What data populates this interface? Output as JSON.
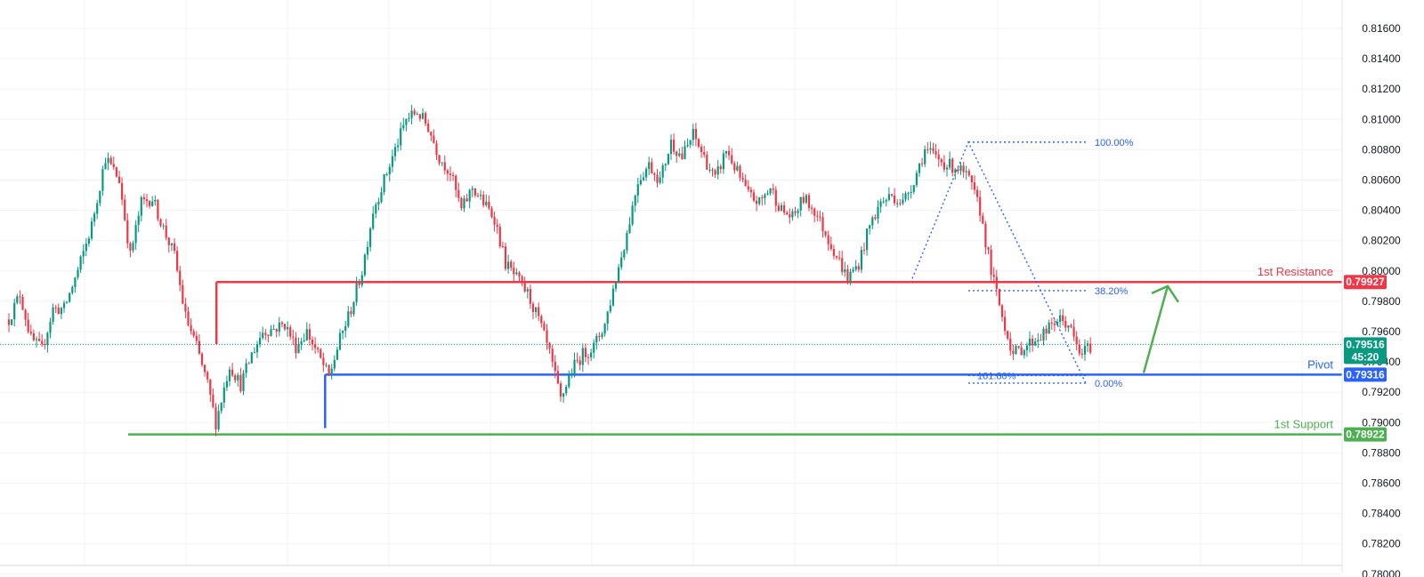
{
  "chart_data": {
    "type": "candlestick",
    "title": "",
    "ylim": [
      0.78,
      0.818
    ],
    "y_ticks": [
      "0.81600",
      "0.81400",
      "0.81200",
      "0.81000",
      "0.80800",
      "0.80600",
      "0.80400",
      "0.80200",
      "0.80000",
      "0.79800",
      "0.79600",
      "0.79400",
      "0.79200",
      "0.79000",
      "0.78800",
      "0.78600",
      "0.78400",
      "0.78200",
      "0.78000"
    ],
    "grid": true,
    "current_price": {
      "value": 0.79516,
      "label": "0.79516",
      "countdown": "45:20",
      "color": "#089981"
    },
    "levels": [
      {
        "name": "1st Resistance",
        "value": 0.79927,
        "label": "0.79927",
        "color": "#f23645"
      },
      {
        "name": "Pivot",
        "value": 0.79316,
        "label": "0.79316",
        "color": "#2962ff"
      },
      {
        "name": "1st Support",
        "value": 0.78922,
        "label": "0.78922",
        "color": "#4caf50"
      }
    ],
    "fib_retracement": [
      {
        "label": "100.00%",
        "value": 0.8085
      },
      {
        "label": "38.20%",
        "value": 0.7987
      },
      {
        "label": "161.80%",
        "value": 0.7931
      },
      {
        "label": "0.00%",
        "value": 0.7926
      }
    ],
    "arrow": {
      "direction": "up",
      "color": "#4caf50"
    },
    "colors": {
      "up": "#089981",
      "down": "#f23645",
      "grid": "#f0f3fa"
    },
    "waypoints": [
      [
        0,
        0.7968
      ],
      [
        4,
        0.7985
      ],
      [
        8,
        0.7955
      ],
      [
        12,
        0.7948
      ],
      [
        16,
        0.7975
      ],
      [
        20,
        0.7975
      ],
      [
        25,
        0.8
      ],
      [
        30,
        0.803
      ],
      [
        35,
        0.8075
      ],
      [
        40,
        0.806
      ],
      [
        44,
        0.801
      ],
      [
        48,
        0.8045
      ],
      [
        52,
        0.8048
      ],
      [
        56,
        0.8028
      ],
      [
        60,
        0.801
      ],
      [
        64,
        0.797
      ],
      [
        68,
        0.795
      ],
      [
        72,
        0.7925
      ],
      [
        75,
        0.79
      ],
      [
        80,
        0.7938
      ],
      [
        84,
        0.7925
      ],
      [
        88,
        0.7945
      ],
      [
        92,
        0.796
      ],
      [
        96,
        0.7962
      ],
      [
        100,
        0.7965
      ],
      [
        104,
        0.795
      ],
      [
        108,
        0.796
      ],
      [
        112,
        0.7945
      ],
      [
        116,
        0.793
      ],
      [
        120,
        0.7955
      ],
      [
        124,
        0.7975
      ],
      [
        128,
        0.8
      ],
      [
        132,
        0.804
      ],
      [
        136,
        0.806
      ],
      [
        140,
        0.808
      ],
      [
        144,
        0.81
      ],
      [
        148,
        0.8105
      ],
      [
        152,
        0.8095
      ],
      [
        156,
        0.8075
      ],
      [
        160,
        0.8065
      ],
      [
        164,
        0.804
      ],
      [
        168,
        0.8055
      ],
      [
        172,
        0.8045
      ],
      [
        176,
        0.8035
      ],
      [
        180,
        0.8005
      ],
      [
        184,
        0.7995
      ],
      [
        188,
        0.7985
      ],
      [
        192,
        0.7968
      ],
      [
        196,
        0.7945
      ],
      [
        200,
        0.7915
      ],
      [
        204,
        0.7935
      ],
      [
        208,
        0.7945
      ],
      [
        212,
        0.795
      ],
      [
        216,
        0.7965
      ],
      [
        220,
        0.7995
      ],
      [
        224,
        0.8025
      ],
      [
        228,
        0.806
      ],
      [
        232,
        0.807
      ],
      [
        236,
        0.806
      ],
      [
        240,
        0.8085
      ],
      [
        244,
        0.8075
      ],
      [
        248,
        0.809
      ],
      [
        252,
        0.8075
      ],
      [
        256,
        0.806
      ],
      [
        260,
        0.808
      ],
      [
        264,
        0.8065
      ],
      [
        268,
        0.805
      ],
      [
        272,
        0.8045
      ],
      [
        276,
        0.8055
      ],
      [
        280,
        0.804
      ],
      [
        284,
        0.8035
      ],
      [
        288,
        0.8048
      ],
      [
        292,
        0.804
      ],
      [
        296,
        0.8025
      ],
      [
        300,
        0.801
      ],
      [
        304,
        0.7995
      ],
      [
        308,
        0.8005
      ],
      [
        312,
        0.803
      ],
      [
        316,
        0.8045
      ],
      [
        320,
        0.805
      ],
      [
        324,
        0.8045
      ],
      [
        328,
        0.806
      ],
      [
        332,
        0.808
      ],
      [
        336,
        0.8075
      ],
      [
        340,
        0.807
      ],
      [
        344,
        0.8068
      ],
      [
        348,
        0.806
      ],
      [
        352,
        0.804
      ],
      [
        356,
        0.8
      ],
      [
        360,
        0.797
      ],
      [
        364,
        0.7945
      ],
      [
        368,
        0.795
      ],
      [
        372,
        0.7955
      ],
      [
        376,
        0.796
      ],
      [
        380,
        0.7968
      ],
      [
        384,
        0.7965
      ],
      [
        388,
        0.7945
      ],
      [
        392,
        0.795
      ]
    ]
  }
}
